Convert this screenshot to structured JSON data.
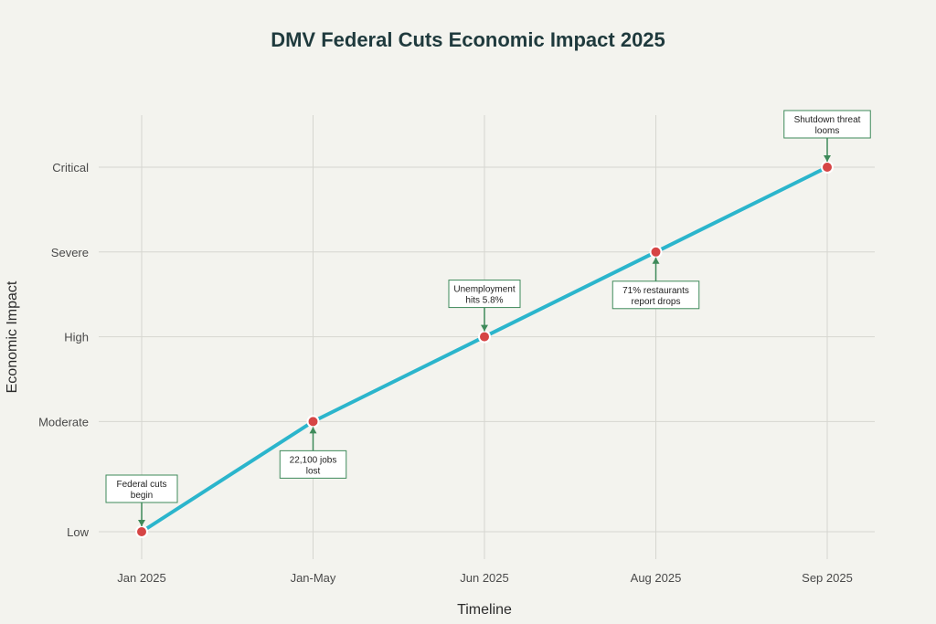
{
  "chart_data": {
    "type": "line",
    "title": "DMV Federal Cuts Economic Impact 2025",
    "xlabel": "Timeline",
    "ylabel": "Economic Impact",
    "categories": [
      "Jan 2025",
      "Jan-May",
      "Jun 2025",
      "Aug 2025",
      "Sep 2025"
    ],
    "y_levels": [
      "Low",
      "Moderate",
      "High",
      "Severe",
      "Critical"
    ],
    "y_scale_values": [
      1.0,
      2.3,
      3.3,
      4.3,
      5.3
    ],
    "series": [
      {
        "values": [
          1.0,
          2.3,
          3.3,
          4.3,
          5.3
        ]
      }
    ],
    "annotations": [
      {
        "category": "Jan 2025",
        "text": [
          "Federal cuts",
          "begin"
        ],
        "position": "above"
      },
      {
        "category": "Jan-May",
        "text": [
          "22,100 jobs",
          "lost"
        ],
        "position": "below"
      },
      {
        "category": "Jun 2025",
        "text": [
          "Unemployment",
          "hits 5.8%"
        ],
        "position": "above"
      },
      {
        "category": "Aug 2025",
        "text": [
          "71% restaurants",
          "report drops"
        ],
        "position": "below"
      },
      {
        "category": "Sep 2025",
        "text": [
          "Shutdown threat",
          "looms"
        ],
        "position": "above"
      }
    ],
    "grid": true,
    "colors": {
      "line": "#2bb5cc",
      "marker": "#d64545",
      "annotation": "#3e8a5a",
      "grid": "#d6d6d0",
      "background": "#f3f3ee"
    }
  }
}
